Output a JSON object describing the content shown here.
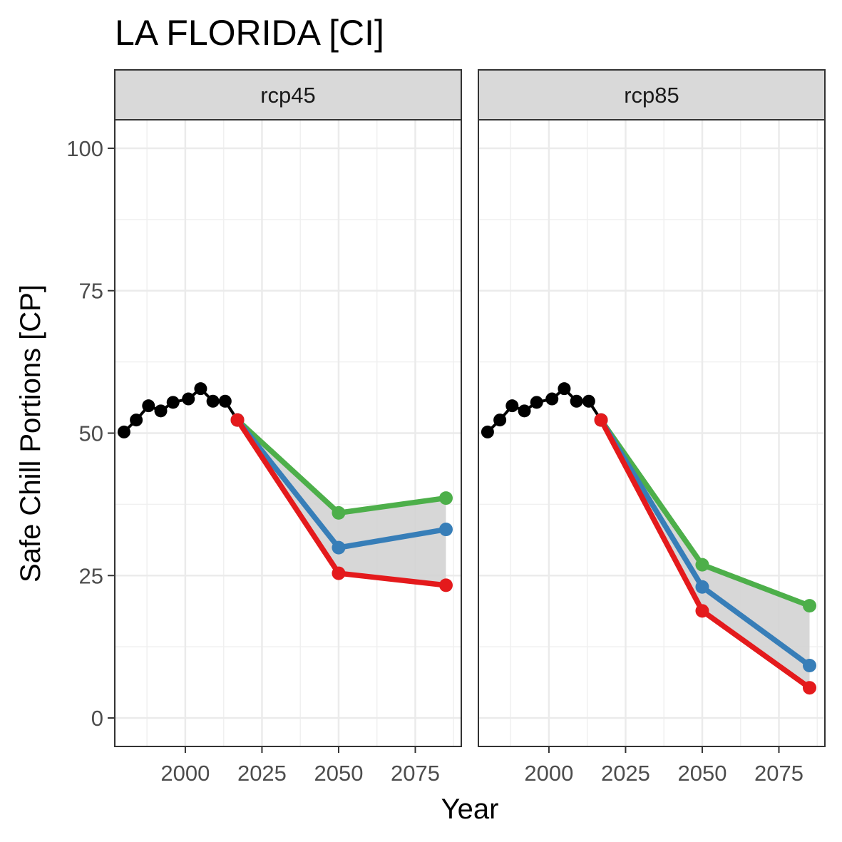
{
  "chart_data": {
    "type": "line",
    "title": "LA FLORIDA [CI]",
    "xlabel": "Year",
    "ylabel": "Safe Chill Portions [CP]",
    "xlim": [
      1977,
      2090
    ],
    "ylim": [
      -5,
      105
    ],
    "x_ticks": [
      2000,
      2025,
      2050,
      2075
    ],
    "y_ticks": [
      0,
      25,
      50,
      75,
      100
    ],
    "grid": true,
    "legend": "none",
    "colors": {
      "historic": "#000000",
      "green": "#4daf4a",
      "blue": "#377eb8",
      "red": "#e41a1c",
      "band": "#d3d3d3"
    },
    "panels": [
      {
        "label": "rcp45",
        "historic": {
          "x": [
            1980,
            1984,
            1988,
            1992,
            1996,
            2001,
            2005,
            2009,
            2013
          ],
          "y": [
            50.2,
            52.3,
            54.8,
            53.9,
            55.4,
            56.0,
            57.8,
            55.6,
            55.6
          ]
        },
        "connector": {
          "x": [
            2013,
            2017
          ],
          "y": [
            55.6,
            52.3
          ]
        },
        "series": [
          {
            "color": "green",
            "x": [
              2017,
              2050,
              2085
            ],
            "y": [
              52.3,
              36.0,
              38.6
            ]
          },
          {
            "color": "blue",
            "x": [
              2017,
              2050,
              2085
            ],
            "y": [
              52.3,
              29.9,
              33.1
            ]
          },
          {
            "color": "red",
            "x": [
              2017,
              2050,
              2085
            ],
            "y": [
              52.3,
              25.4,
              23.3
            ]
          }
        ],
        "band": {
          "x": [
            2017,
            2050,
            2085
          ],
          "lower": [
            52.3,
            25.4,
            23.3
          ],
          "upper": [
            52.3,
            36.0,
            38.6
          ]
        }
      },
      {
        "label": "rcp85",
        "historic": {
          "x": [
            1980,
            1984,
            1988,
            1992,
            1996,
            2001,
            2005,
            2009,
            2013
          ],
          "y": [
            50.2,
            52.3,
            54.8,
            53.9,
            55.4,
            56.0,
            57.8,
            55.6,
            55.6
          ]
        },
        "connector": {
          "x": [
            2013,
            2017
          ],
          "y": [
            55.6,
            52.3
          ]
        },
        "series": [
          {
            "color": "green",
            "x": [
              2017,
              2050,
              2085
            ],
            "y": [
              52.3,
              26.9,
              19.7
            ]
          },
          {
            "color": "blue",
            "x": [
              2017,
              2050,
              2085
            ],
            "y": [
              52.3,
              23.0,
              9.2
            ]
          },
          {
            "color": "red",
            "x": [
              2017,
              2050,
              2085
            ],
            "y": [
              52.3,
              18.8,
              5.3
            ]
          }
        ],
        "band": {
          "x": [
            2017,
            2050,
            2085
          ],
          "lower": [
            52.3,
            18.8,
            5.3
          ],
          "upper": [
            52.3,
            26.9,
            19.7
          ]
        }
      }
    ]
  }
}
